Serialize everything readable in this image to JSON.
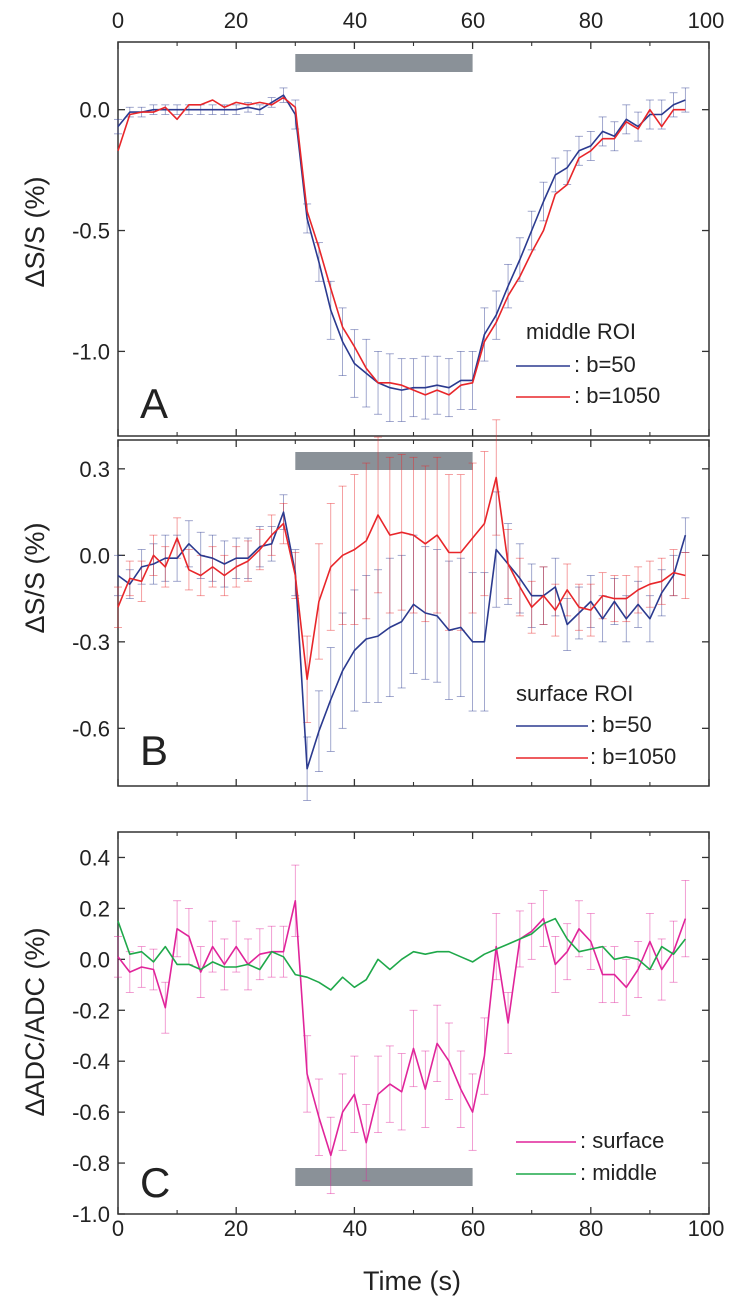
{
  "chart_data": {
    "type": "line",
    "xlabel": "Time (s)",
    "xlim": [
      0,
      100
    ],
    "xticks": [
      "0",
      "20",
      "40",
      "60",
      "80",
      "100"
    ],
    "stimulus_bar": {
      "start": 30,
      "end": 60,
      "color": "#8a9198"
    },
    "panels": [
      {
        "label": "A",
        "ylabel": "ΔS/S (%)",
        "ylim": [
          -1.35,
          0.28
        ],
        "yticks": [
          "0.0",
          "-0.5",
          "-1.0"
        ],
        "ytick_values": [
          0.0,
          -0.5,
          -1.0
        ],
        "legend_title": "middle ROI",
        "x": [
          0,
          2,
          4,
          6,
          8,
          10,
          12,
          14,
          16,
          18,
          20,
          22,
          24,
          26,
          28,
          30,
          32,
          34,
          36,
          38,
          40,
          42,
          44,
          46,
          48,
          50,
          52,
          54,
          56,
          58,
          60,
          62,
          64,
          66,
          68,
          70,
          72,
          74,
          76,
          78,
          80,
          82,
          84,
          86,
          88,
          90,
          92,
          94,
          96
        ],
        "series": [
          {
            "name": ": b=50",
            "color": "#2b3a8f",
            "values": [
              -0.07,
              -0.01,
              -0.01,
              0.0,
              0.0,
              0.0,
              0.0,
              0.0,
              0.0,
              0.0,
              0.0,
              0.01,
              0.0,
              0.03,
              0.06,
              -0.02,
              -0.45,
              -0.63,
              -0.83,
              -0.96,
              -1.05,
              -1.09,
              -1.13,
              -1.15,
              -1.16,
              -1.15,
              -1.15,
              -1.14,
              -1.15,
              -1.12,
              -1.12,
              -0.93,
              -0.85,
              -0.73,
              -0.62,
              -0.5,
              -0.38,
              -0.27,
              -0.24,
              -0.17,
              -0.15,
              -0.09,
              -0.11,
              -0.04,
              -0.07,
              -0.02,
              -0.02,
              0.02,
              0.04
            ],
            "err": [
              0.03,
              0.02,
              0.02,
              0.02,
              0.02,
              0.02,
              0.02,
              0.02,
              0.02,
              0.02,
              0.02,
              0.02,
              0.02,
              0.02,
              0.03,
              0.06,
              0.06,
              0.08,
              0.12,
              0.14,
              0.14,
              0.14,
              0.13,
              0.14,
              0.13,
              0.12,
              0.13,
              0.12,
              0.12,
              0.12,
              0.12,
              0.11,
              0.1,
              0.09,
              0.09,
              0.08,
              0.08,
              0.07,
              0.07,
              0.06,
              0.06,
              0.06,
              0.06,
              0.06,
              0.06,
              0.06,
              0.06,
              0.05,
              0.05
            ]
          },
          {
            "name": ": b=1050",
            "color": "#e8262a",
            "values": [
              -0.17,
              -0.02,
              -0.01,
              -0.01,
              0.01,
              -0.04,
              0.02,
              0.02,
              0.04,
              0.01,
              0.03,
              0.02,
              0.03,
              0.02,
              0.05,
              0.01,
              -0.42,
              -0.57,
              -0.74,
              -0.9,
              -0.98,
              -1.07,
              -1.13,
              -1.13,
              -1.14,
              -1.16,
              -1.18,
              -1.16,
              -1.18,
              -1.14,
              -1.13,
              -0.96,
              -0.88,
              -0.77,
              -0.69,
              -0.59,
              -0.5,
              -0.35,
              -0.31,
              -0.2,
              -0.17,
              -0.12,
              -0.12,
              -0.05,
              -0.08,
              0.0,
              -0.07,
              0.0,
              0.0
            ],
            "err": []
          }
        ]
      },
      {
        "label": "B",
        "ylabel": "ΔS/S (%)",
        "ylim": [
          -0.8,
          0.4
        ],
        "yticks": [
          "0.3",
          "0.0",
          "-0.3",
          "-0.6"
        ],
        "ytick_values": [
          0.3,
          0.0,
          -0.3,
          -0.6
        ],
        "legend_title": "surface ROI",
        "x": [
          0,
          2,
          4,
          6,
          8,
          10,
          12,
          14,
          16,
          18,
          20,
          22,
          24,
          26,
          28,
          30,
          32,
          34,
          36,
          38,
          40,
          42,
          44,
          46,
          48,
          50,
          52,
          54,
          56,
          58,
          60,
          62,
          64,
          66,
          68,
          70,
          72,
          74,
          76,
          78,
          80,
          82,
          84,
          86,
          88,
          90,
          92,
          94,
          96
        ],
        "series": [
          {
            "name": ": b=50",
            "color": "#2b3a8f",
            "values": [
              -0.07,
              -0.1,
              -0.04,
              -0.03,
              -0.01,
              -0.01,
              0.04,
              0.0,
              -0.01,
              -0.03,
              -0.01,
              -0.01,
              0.03,
              0.04,
              0.15,
              -0.06,
              -0.74,
              -0.61,
              -0.5,
              -0.4,
              -0.33,
              -0.29,
              -0.28,
              -0.25,
              -0.23,
              -0.17,
              -0.2,
              -0.21,
              -0.26,
              -0.25,
              -0.3,
              -0.3,
              0.02,
              -0.03,
              -0.08,
              -0.14,
              -0.14,
              -0.11,
              -0.24,
              -0.2,
              -0.16,
              -0.22,
              -0.16,
              -0.22,
              -0.17,
              -0.22,
              -0.13,
              -0.07,
              0.07
            ],
            "err": [
              0.07,
              0.05,
              0.06,
              0.07,
              0.08,
              0.08,
              0.08,
              0.08,
              0.08,
              0.08,
              0.07,
              0.07,
              0.07,
              0.06,
              0.06,
              0.08,
              0.11,
              0.14,
              0.18,
              0.2,
              0.21,
              0.22,
              0.23,
              0.24,
              0.23,
              0.24,
              0.23,
              0.23,
              0.24,
              0.24,
              0.24,
              0.24,
              0.2,
              0.14,
              0.12,
              0.11,
              0.1,
              0.1,
              0.09,
              0.09,
              0.09,
              0.08,
              0.08,
              0.08,
              0.08,
              0.08,
              0.08,
              0.07,
              0.06
            ]
          },
          {
            "name": ": b=1050",
            "color": "#e8262a",
            "values": [
              -0.18,
              -0.08,
              -0.09,
              0.0,
              -0.04,
              0.06,
              -0.05,
              -0.07,
              -0.04,
              -0.07,
              -0.04,
              -0.02,
              0.02,
              0.07,
              0.11,
              -0.07,
              -0.43,
              -0.16,
              -0.04,
              0.0,
              0.02,
              0.05,
              0.14,
              0.07,
              0.08,
              0.07,
              0.04,
              0.07,
              0.01,
              0.01,
              0.06,
              0.11,
              0.27,
              -0.03,
              -0.11,
              -0.18,
              -0.14,
              -0.19,
              -0.12,
              -0.18,
              -0.19,
              -0.14,
              -0.15,
              -0.15,
              -0.12,
              -0.1,
              -0.09,
              -0.06,
              -0.07
            ],
            "err": [
              0.07,
              0.06,
              0.07,
              0.07,
              0.07,
              0.07,
              0.07,
              0.07,
              0.07,
              0.07,
              0.07,
              0.07,
              0.07,
              0.07,
              0.07,
              0.08,
              0.15,
              0.2,
              0.22,
              0.24,
              0.26,
              0.27,
              0.27,
              0.27,
              0.27,
              0.27,
              0.27,
              0.27,
              0.27,
              0.27,
              0.26,
              0.25,
              0.2,
              0.12,
              0.1,
              0.09,
              0.1,
              0.09,
              0.09,
              0.08,
              0.09,
              0.08,
              0.08,
              0.08,
              0.08,
              0.08,
              0.08,
              0.08,
              0.08
            ]
          }
        ]
      },
      {
        "label": "C",
        "ylabel": "ΔADC/ADC (%)",
        "ylim": [
          -1.0,
          0.5
        ],
        "yticks": [
          "0.4",
          "0.2",
          "0.0",
          "-0.2",
          "-0.4",
          "-0.6",
          "-0.8",
          "-1.0"
        ],
        "ytick_values": [
          0.4,
          0.2,
          0.0,
          -0.2,
          -0.4,
          -0.6,
          -0.8,
          -1.0
        ],
        "legend_title": "",
        "x": [
          0,
          2,
          4,
          6,
          8,
          10,
          12,
          14,
          16,
          18,
          20,
          22,
          24,
          26,
          28,
          30,
          32,
          34,
          36,
          38,
          40,
          42,
          44,
          46,
          48,
          50,
          52,
          54,
          56,
          58,
          60,
          62,
          64,
          66,
          68,
          70,
          72,
          74,
          76,
          78,
          80,
          82,
          84,
          86,
          88,
          90,
          92,
          94,
          96
        ],
        "series": [
          {
            "name": ": surface",
            "color": "#e0249a",
            "values": [
              0.01,
              -0.05,
              -0.03,
              -0.04,
              -0.19,
              0.12,
              0.09,
              -0.05,
              0.05,
              -0.02,
              0.05,
              -0.02,
              0.02,
              0.03,
              0.03,
              0.23,
              -0.45,
              -0.62,
              -0.77,
              -0.6,
              -0.53,
              -0.72,
              -0.53,
              -0.49,
              -0.52,
              -0.35,
              -0.51,
              -0.33,
              -0.4,
              -0.51,
              -0.6,
              -0.38,
              0.05,
              -0.25,
              0.08,
              0.11,
              0.16,
              -0.02,
              0.03,
              0.12,
              0.07,
              -0.06,
              -0.06,
              -0.11,
              -0.04,
              0.07,
              -0.04,
              0.03,
              0.16
            ],
            "err": [
              0.08,
              0.08,
              0.08,
              0.08,
              0.1,
              0.11,
              0.11,
              0.1,
              0.1,
              0.1,
              0.1,
              0.1,
              0.1,
              0.1,
              0.1,
              0.14,
              0.15,
              0.15,
              0.15,
              0.15,
              0.15,
              0.15,
              0.15,
              0.15,
              0.15,
              0.15,
              0.15,
              0.15,
              0.15,
              0.15,
              0.15,
              0.15,
              0.13,
              0.12,
              0.11,
              0.11,
              0.11,
              0.11,
              0.11,
              0.11,
              0.11,
              0.11,
              0.11,
              0.11,
              0.11,
              0.11,
              0.12,
              0.12,
              0.15
            ]
          },
          {
            "name": ": middle",
            "color": "#1fa84a",
            "values": [
              0.15,
              0.02,
              0.03,
              -0.01,
              0.05,
              -0.02,
              -0.02,
              -0.04,
              -0.01,
              -0.03,
              -0.03,
              -0.02,
              -0.04,
              0.03,
              0.01,
              -0.06,
              -0.07,
              -0.09,
              -0.12,
              -0.07,
              -0.11,
              -0.08,
              0.0,
              -0.04,
              0.0,
              0.03,
              0.02,
              0.03,
              0.03,
              0.01,
              -0.01,
              0.02,
              0.04,
              0.06,
              0.08,
              0.1,
              0.14,
              0.16,
              0.08,
              0.03,
              0.04,
              0.05,
              0.0,
              0.01,
              0.0,
              -0.04,
              0.05,
              0.02,
              0.08
            ],
            "err": []
          }
        ]
      }
    ]
  }
}
